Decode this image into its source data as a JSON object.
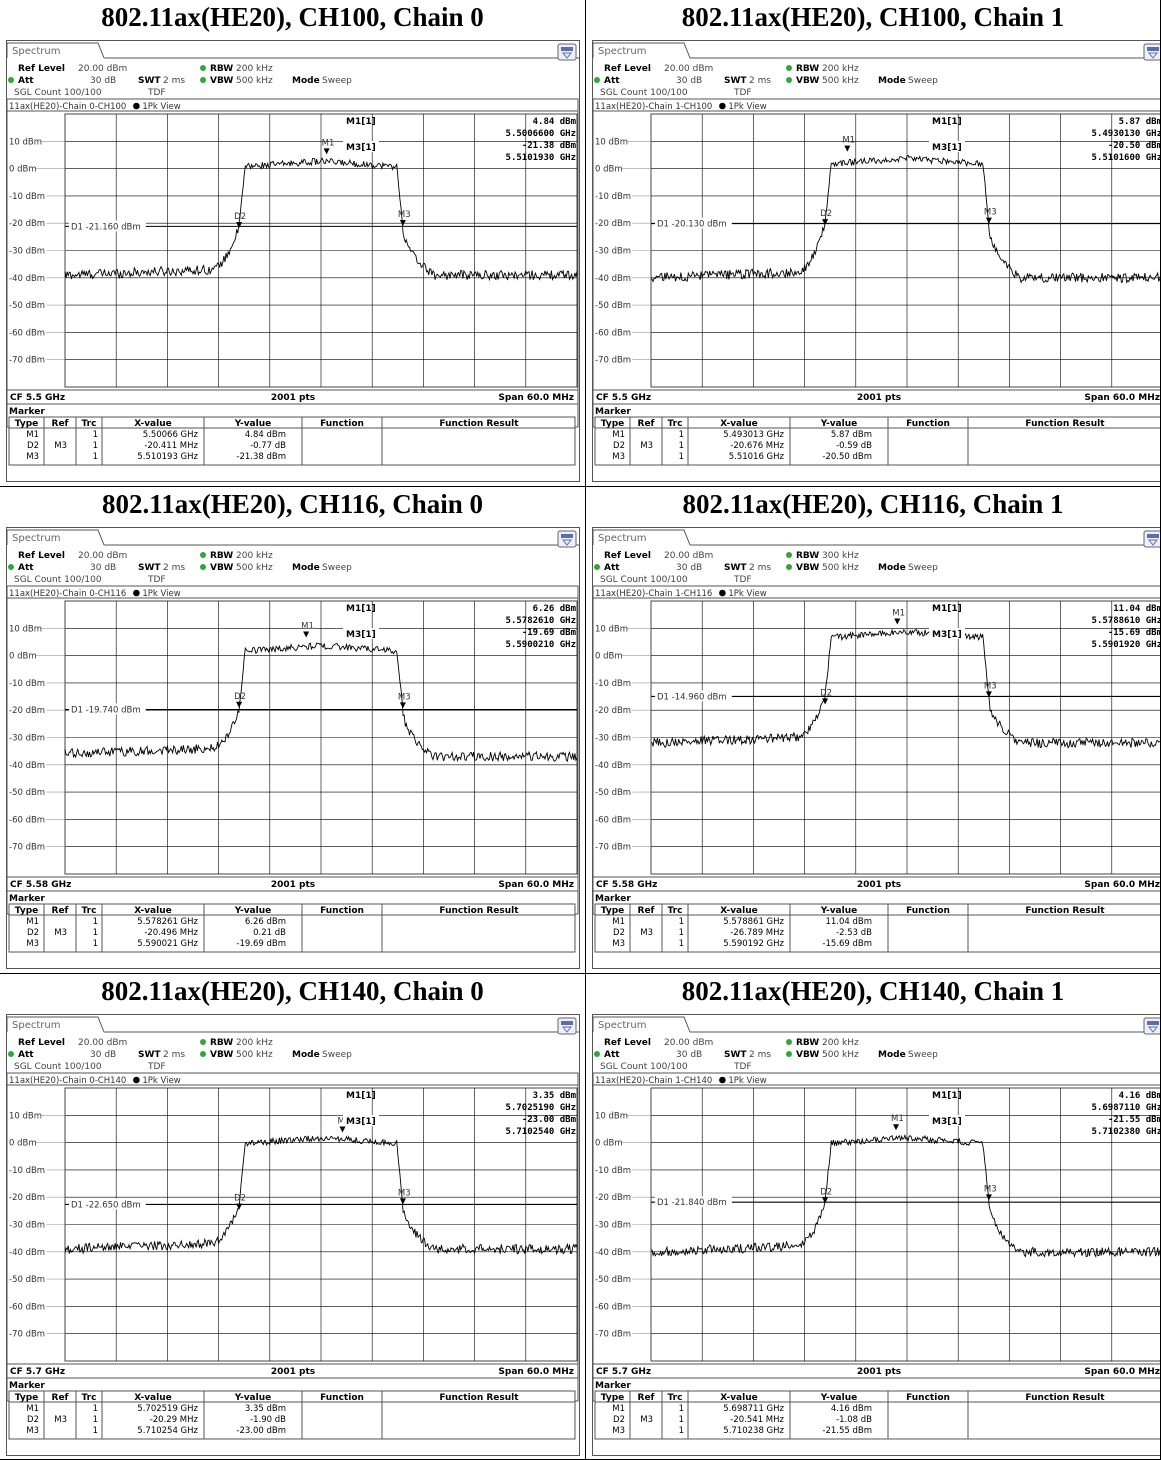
{
  "labels": {
    "tab": "Spectrum",
    "ref_level_label": "Ref Level",
    "att_label": "Att",
    "swt_label": "SWT",
    "rbw_label": "RBW",
    "vbw_label": "VBW",
    "mode_label": "Mode",
    "mode_value": "Sweep",
    "sgl_count": "SGL Count 100/100",
    "tdf": "TDF",
    "pk_view": "1Pk View",
    "points": "2001 pts",
    "span": "Span 60.0 MHz",
    "marker_section": "Marker",
    "col_type": "Type",
    "col_ref": "Ref",
    "col_trc": "Trc",
    "col_x": "X-value",
    "col_y": "Y-value",
    "col_function": "Function",
    "col_function_result": "Function Result",
    "m1_label": "M1[1]",
    "m3_label": "M3[1]",
    "y_ticks": [
      "10 dBm",
      "0 dBm",
      "-10 dBm",
      "-20 dBm",
      "-30 dBm",
      "-40 dBm",
      "-50 dBm",
      "-60 dBm",
      "-70 dBm"
    ]
  },
  "colors": {
    "trace": "#000000",
    "grid": "#b8b8b8",
    "led_green": "#2fa83a",
    "bg": "#ffffff"
  },
  "panels": [
    {
      "title": "802.11ax(HE20), CH100, Chain 0",
      "ref_level": "20.00 dBm",
      "att": "30 dB",
      "swt": "2 ms",
      "rbw": "200 kHz",
      "vbw": "500 kHz",
      "trace_label": "11ax(HE20)-Chain 0-CH100",
      "m1_y": "4.84 dBm",
      "m1_x": "5.5006600 GHz",
      "m3_y": "-21.38 dBm",
      "m3_x": "5.5101930 GHz",
      "d1_line": "D1 -21.160 dBm",
      "cf": "CF 5.5 GHz",
      "markers": [
        {
          "type": "M1",
          "ref": "",
          "trc": "1",
          "x": "5.50066 GHz",
          "y": "4.84 dBm"
        },
        {
          "type": "D2",
          "ref": "M3",
          "trc": "1",
          "x": "-20.411 MHz",
          "y": "-0.77 dB"
        },
        {
          "type": "M3",
          "ref": "",
          "trc": "1",
          "x": "5.510193 GHz",
          "y": "-21.38 dBm"
        }
      ],
      "trace": {
        "plateau": 2,
        "noise_left": -39,
        "noise_right": -39,
        "d1": -21.16,
        "m1": 4.84,
        "m3": -21.38,
        "m1_pos": 0.5,
        "m1_x_offset_mhz": 0.66
      }
    },
    {
      "title": "802.11ax(HE20), CH100, Chain 1",
      "ref_level": "20.00 dBm",
      "att": "30 dB",
      "swt": "2 ms",
      "rbw": "200 kHz",
      "vbw": "500 kHz",
      "trace_label": "11ax(HE20)-Chain 1-CH100",
      "m1_y": "5.87 dBm",
      "m1_x": "5.4930130 GHz",
      "m3_y": "-20.50 dBm",
      "m3_x": "5.5101600 GHz",
      "d1_line": "D1 -20.130 dBm",
      "cf": "CF 5.5 GHz",
      "markers": [
        {
          "type": "M1",
          "ref": "",
          "trc": "1",
          "x": "5.493013 GHz",
          "y": "5.87 dBm"
        },
        {
          "type": "D2",
          "ref": "M3",
          "trc": "1",
          "x": "-20.676 MHz",
          "y": "-0.59 dB"
        },
        {
          "type": "M3",
          "ref": "",
          "trc": "1",
          "x": "5.51016 GHz",
          "y": "-20.50 dBm"
        }
      ],
      "trace": {
        "plateau": 3,
        "noise_left": -40,
        "noise_right": -40,
        "d1": -20.13,
        "m1": 5.87,
        "m3": -20.5,
        "m1_x_offset_mhz": -6.99
      }
    },
    {
      "title": "802.11ax(HE20), CH116, Chain 0",
      "ref_level": "20.00 dBm",
      "att": "30 dB",
      "swt": "2 ms",
      "rbw": "200 kHz",
      "vbw": "500 kHz",
      "trace_label": "11ax(HE20)-Chain 0-CH116",
      "m1_y": "6.26 dBm",
      "m1_x": "5.5782610 GHz",
      "m3_y": "-19.69 dBm",
      "m3_x": "5.5900210 GHz",
      "d1_line": "D1 -19.740 dBm",
      "cf": "CF 5.58 GHz",
      "markers": [
        {
          "type": "M1",
          "ref": "",
          "trc": "1",
          "x": "5.578261 GHz",
          "y": "6.26 dBm"
        },
        {
          "type": "D2",
          "ref": "M3",
          "trc": "1",
          "x": "-20.496 MHz",
          "y": "0.21 dB"
        },
        {
          "type": "M3",
          "ref": "",
          "trc": "1",
          "x": "5.590021 GHz",
          "y": "-19.69 dBm"
        }
      ],
      "trace": {
        "plateau": 3,
        "noise_left": -36,
        "noise_right": -37,
        "d1": -19.74,
        "m1": 6.26,
        "m3": -19.69,
        "m1_x_offset_mhz": -1.74
      }
    },
    {
      "title": "802.11ax(HE20), CH116, Chain 1",
      "ref_level": "20.00 dBm",
      "att": "30 dB",
      "swt": "2 ms",
      "rbw": "300 kHz",
      "vbw": "500 kHz",
      "trace_label": "11ax(HE20)-Chain 1-CH116",
      "m1_y": "11.04 dBm",
      "m1_x": "5.5788610 GHz",
      "m3_y": "-15.69 dBm",
      "m3_x": "5.5901920 GHz",
      "d1_line": "D1 -14.960 dBm",
      "cf": "CF 5.58 GHz",
      "markers": [
        {
          "type": "M1",
          "ref": "",
          "trc": "1",
          "x": "5.578861 GHz",
          "y": "11.04 dBm"
        },
        {
          "type": "D2",
          "ref": "M3",
          "trc": "1",
          "x": "-26.789 MHz",
          "y": "-2.53 dB"
        },
        {
          "type": "M3",
          "ref": "",
          "trc": "1",
          "x": "5.590192 GHz",
          "y": "-15.69 dBm"
        }
      ],
      "trace": {
        "plateau": 8,
        "noise_left": -32,
        "noise_right": -32,
        "d1": -14.96,
        "m1": 11.04,
        "m3": -15.69,
        "m1_x_offset_mhz": -1.14
      }
    },
    {
      "title": "802.11ax(HE20), CH140, Chain 0",
      "ref_level": "20.00 dBm",
      "att": "30 dB",
      "swt": "2 ms",
      "rbw": "200 kHz",
      "vbw": "500 kHz",
      "trace_label": "11ax(HE20)-Chain 0-CH140",
      "m1_y": "3.35 dBm",
      "m1_x": "5.7025190 GHz",
      "m3_y": "-23.00 dBm",
      "m3_x": "5.7102540 GHz",
      "d1_line": "D1 -22.650 dBm",
      "cf": "CF 5.7 GHz",
      "markers": [
        {
          "type": "M1",
          "ref": "",
          "trc": "1",
          "x": "5.702519 GHz",
          "y": "3.35 dBm"
        },
        {
          "type": "D2",
          "ref": "M3",
          "trc": "1",
          "x": "-20.29 MHz",
          "y": "-1.90 dB"
        },
        {
          "type": "M3",
          "ref": "",
          "trc": "1",
          "x": "5.710254 GHz",
          "y": "-23.00 dBm"
        }
      ],
      "trace": {
        "plateau": 1,
        "noise_left": -39,
        "noise_right": -39,
        "d1": -22.65,
        "m1": 3.35,
        "m3": -23.0,
        "m1_x_offset_mhz": 2.52
      }
    },
    {
      "title": "802.11ax(HE20), CH140, Chain 1",
      "ref_level": "20.00 dBm",
      "att": "30 dB",
      "swt": "2 ms",
      "rbw": "200 kHz",
      "vbw": "500 kHz",
      "trace_label": "11ax(HE20)-Chain 1-CH140",
      "m1_y": "4.16 dBm",
      "m1_x": "5.6987110 GHz",
      "m3_y": "-21.55 dBm",
      "m3_x": "5.7102380 GHz",
      "d1_line": "D1 -21.840 dBm",
      "cf": "CF 5.7 GHz",
      "markers": [
        {
          "type": "M1",
          "ref": "",
          "trc": "1",
          "x": "5.698711 GHz",
          "y": "4.16 dBm"
        },
        {
          "type": "D2",
          "ref": "M3",
          "trc": "1",
          "x": "-20.541 MHz",
          "y": "-1.08 dB"
        },
        {
          "type": "M3",
          "ref": "",
          "trc": "1",
          "x": "5.710238 GHz",
          "y": "-21.55 dBm"
        }
      ],
      "trace": {
        "plateau": 1,
        "noise_left": -40,
        "noise_right": -40,
        "d1": -21.84,
        "m1": 4.16,
        "m3": -21.55,
        "m1_x_offset_mhz": -1.29
      }
    }
  ]
}
